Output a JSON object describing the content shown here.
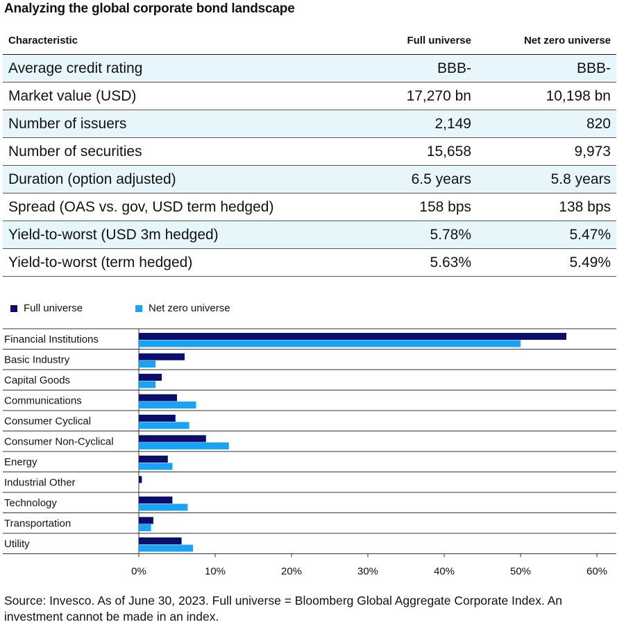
{
  "title": "Analyzing the global corporate bond landscape",
  "table": {
    "headers": [
      "Characteristic",
      "Full universe",
      "Net zero universe"
    ],
    "rows": [
      [
        "Average credit rating",
        "BBB-",
        "BBB-"
      ],
      [
        "Market value (USD)",
        "17,270 bn",
        "10,198 bn"
      ],
      [
        "Number of issuers",
        "2,149",
        "820"
      ],
      [
        "Number of securities",
        "15,658",
        "9,973"
      ],
      [
        "Duration (option adjusted)",
        "6.5 years",
        "5.8 years"
      ],
      [
        "Spread (OAS vs. gov, USD term hedged)",
        "158 bps",
        "138 bps"
      ],
      [
        "Yield-to-worst (USD 3m hedged)",
        "5.78%",
        "5.47%"
      ],
      [
        "Yield-to-worst (term hedged)",
        "5.63%",
        "5.49%"
      ]
    ]
  },
  "colors": {
    "full": "#0b0f6b",
    "net_zero": "#1aa3f5",
    "row_shade": "#e6f6fb"
  },
  "chart_data": {
    "type": "bar",
    "orientation": "horizontal",
    "categories": [
      "Financial Institutions",
      "Basic Industry",
      "Capital Goods",
      "Communications",
      "Consumer Cyclical",
      "Consumer Non-Cyclical",
      "Energy",
      "Industrial Other",
      "Technology",
      "Transportation",
      "Utility"
    ],
    "series": [
      {
        "name": "Full universe",
        "values": [
          56,
          6,
          3,
          5,
          4.8,
          8.8,
          3.8,
          0.4,
          4.4,
          1.9,
          5.6
        ]
      },
      {
        "name": "Net zero universe",
        "values": [
          50,
          2.2,
          2.2,
          7.5,
          6.6,
          11.8,
          4.4,
          0,
          6.4,
          1.6,
          7.1
        ]
      }
    ],
    "xlim": [
      0,
      60
    ],
    "xticks": [
      0,
      10,
      20,
      30,
      40,
      50,
      60
    ],
    "tick_labels": [
      "0%",
      "10%",
      "20%",
      "30%",
      "40%",
      "50%",
      "60%"
    ],
    "legend_position": "top-left"
  },
  "source": "Source: Invesco. As of June 30, 2023. Full universe = Bloomberg Global Aggregate Corporate Index. An investment cannot be made in an index."
}
